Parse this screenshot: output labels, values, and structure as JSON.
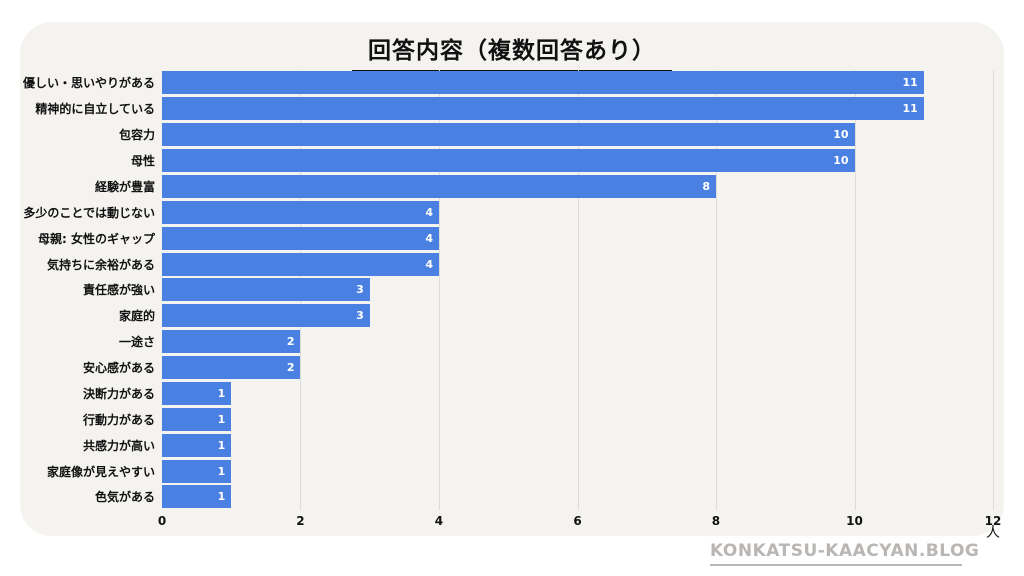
{
  "title": "回答内容（複数回答あり）",
  "watermark": "KONKATSU-KAACYAN.BLOG",
  "colors": {
    "bar": "#4a80e2",
    "card_bg": "#f4f3f0",
    "page_bg": "#ffffff",
    "gridline": "#dedcd8",
    "value_label": "#ffffff",
    "text": "#111111",
    "watermark_text": "#b9b6b3"
  },
  "chart_data": {
    "type": "bar",
    "orientation": "horizontal",
    "title": "回答内容（複数回答あり）",
    "categories": [
      "優しい・思いやりがある",
      "精神的に自立している",
      "包容力",
      "母性",
      "経験が豊富",
      "多少のことでは動じない",
      "母親: 女性のギャップ",
      "気持ちに余裕がある",
      "責任感が強い",
      "家庭的",
      "一途さ",
      "安心感がある",
      "決断力がある",
      "行動力がある",
      "共感力が高い",
      "家庭像が見えやすい",
      "色気がある"
    ],
    "values": [
      11,
      11,
      10,
      10,
      8,
      4,
      4,
      4,
      3,
      3,
      2,
      2,
      1,
      1,
      1,
      1,
      1
    ],
    "xlabel": "",
    "ylabel": "",
    "xlim": [
      0,
      12
    ],
    "x_ticks": [
      0,
      2,
      4,
      6,
      8,
      10,
      12
    ],
    "x_unit": "人",
    "grid": "vertical",
    "legend": "none",
    "value_labels": "inside-end"
  }
}
